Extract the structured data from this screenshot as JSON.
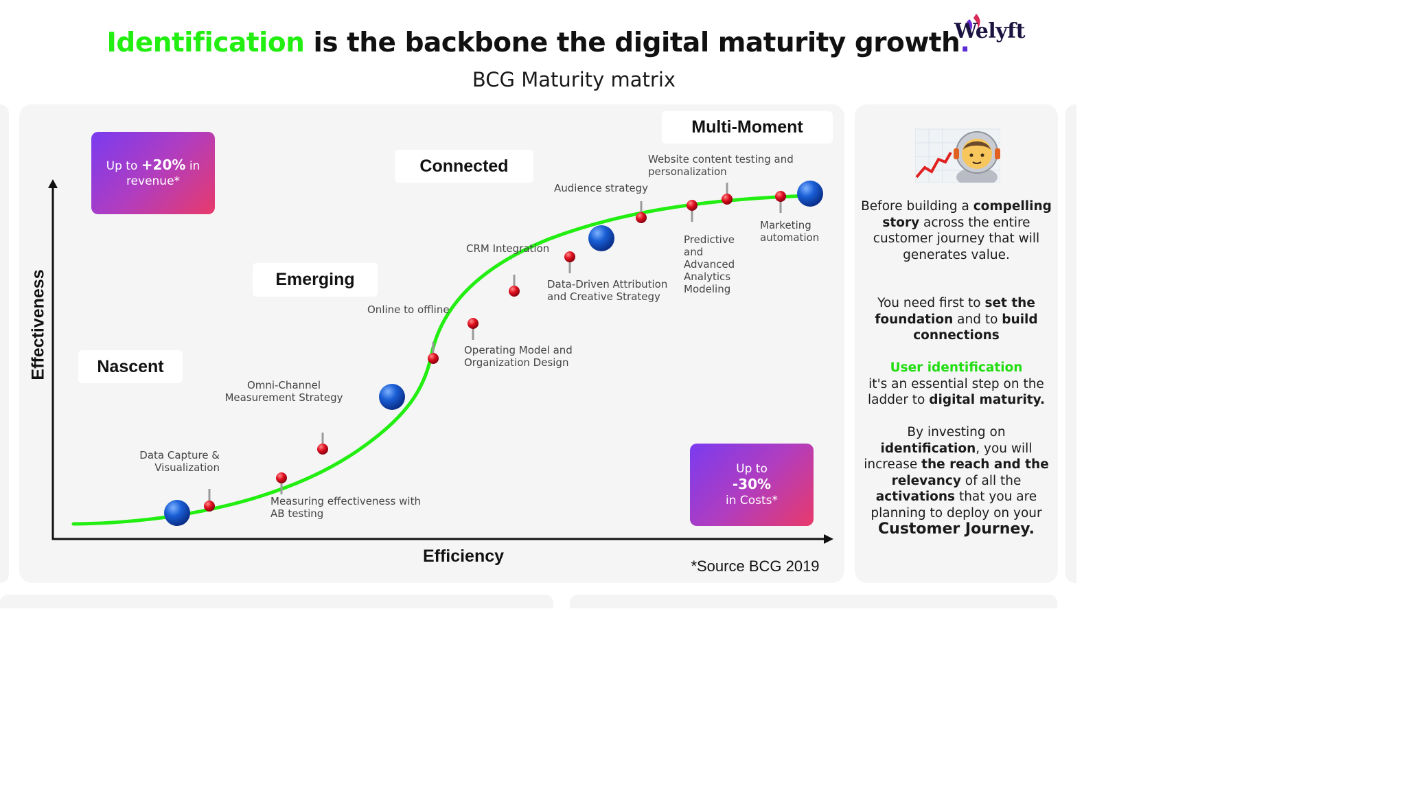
{
  "header": {
    "title_highlight": "Identification",
    "title_rest": " is the backbone the digital maturity growth",
    "title_dot": ".",
    "subtitle": "BCG Maturity matrix",
    "logo_text": "Welyft"
  },
  "colors": {
    "accent_green": "#22ee11",
    "curve": "#22ee11",
    "promo_gradient_start": "#7a3bf0",
    "promo_gradient_end": "#e83a6a",
    "stage_marker": "#1a5fd6",
    "pin": "#e01020"
  },
  "stages": {
    "nascent": "Nascent",
    "emerging": "Emerging",
    "connected": "Connected",
    "multi_moment": "Multi-Moment"
  },
  "promos": {
    "revenue": {
      "prefix": "Up to ",
      "value": "+20%",
      "suffix": " in revenue*"
    },
    "costs": {
      "line1": "Up to",
      "value": "-30%",
      "line3": "in Costs*"
    }
  },
  "points": {
    "data_capture": "Data Capture & Visualization",
    "measuring": "Measuring effectiveness with AB testing",
    "omni_channel": "Omni-Channel Measurement Strategy",
    "online_offline": "Online to offline",
    "operating_model": "Operating Model and Organization Design",
    "crm": "CRM Integration",
    "data_driven": "Data-Driven Attribution and Creative Strategy",
    "audience": "Audience strategy",
    "website": "Website content testing and personalization",
    "predictive": "Predictive and Advanced Analytics Modeling",
    "marketing": "Marketing automation"
  },
  "axes": {
    "y_label": "Effectiveness",
    "x_label": "Efficiency"
  },
  "source": "*Source BCG 2019",
  "sidebar": {
    "icon": "astronaut-chart-icon",
    "p1_a": "Before building a ",
    "p1_b": "compelling story",
    "p1_c": " across the entire customer journey that will generates value.",
    "p2_a": "You need first to ",
    "p2_b": "set the foundation",
    "p2_c": " and to ",
    "p2_d": "build connections",
    "p3_a": "User identification",
    "p3_b": "it's an essential step on the ladder to ",
    "p3_c": "digital maturity.",
    "p4_a": "By investing on ",
    "p4_b": "identification",
    "p4_c": ", you will increase ",
    "p4_d": "the reach and the relevancy",
    "p4_e": " of all the ",
    "p4_f": "activations",
    "p4_g": " that you are planning to deploy on your ",
    "p4_h": "Customer Journey."
  }
}
